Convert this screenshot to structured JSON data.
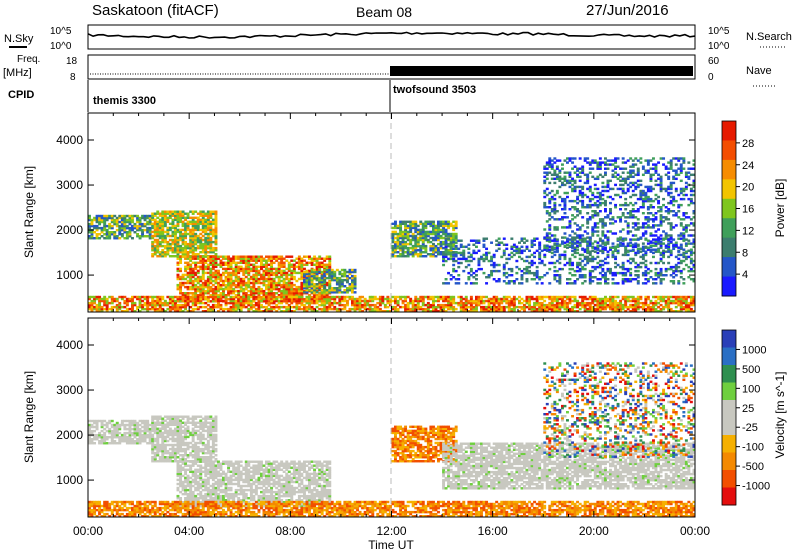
{
  "header": {
    "station": "Saskatoon (fitACF)",
    "beam": "Beam 08",
    "date": "27/Jun/2016"
  },
  "noise_panel": {
    "left_label": "N.Sky",
    "right_label": "N.Search",
    "left_ticks": [
      "10^5",
      "10^0"
    ],
    "right_ticks": [
      "10^5",
      "10^0"
    ]
  },
  "freq_panel": {
    "left_label_line1": "Freq.",
    "left_label_line2": "[MHz]",
    "left_ticks": [
      "18",
      "8"
    ],
    "right_label": "Nave",
    "right_ticks": [
      "60",
      "0"
    ]
  },
  "cpid_panel": {
    "label": "CPID",
    "modes": [
      {
        "name": "themis 3300",
        "start_hour": 0
      },
      {
        "name": "twofsound 3503",
        "start_hour": 12
      }
    ]
  },
  "x_axis": {
    "label": "Time UT",
    "tick_labels": [
      "00:00",
      "04:00",
      "08:00",
      "12:00",
      "16:00",
      "20:00",
      "00:00"
    ],
    "range_hours": [
      0,
      24
    ]
  },
  "colors": {
    "power": [
      "#1a1aff",
      "#2456c8",
      "#3c7d6e",
      "#3f9f5a",
      "#7fc61e",
      "#f2c400",
      "#f68c00",
      "#f34d00",
      "#e61a00"
    ],
    "velocity": [
      "#e40d0d",
      "#f24f00",
      "#f48900",
      "#f6b000",
      "#c8c8c0",
      "#c8c8c0",
      "#6fcf3f",
      "#2e8f4f",
      "#2a6fc4",
      "#2a3fb8"
    ],
    "fill_grey": "#c8c8c0"
  },
  "chart_data": [
    {
      "type": "heatmap",
      "title": "",
      "xlabel": "Time UT",
      "ylabel": "Slant Range [km]",
      "xlim": [
        0,
        24
      ],
      "ylim": [
        180,
        4600
      ],
      "y_tick_labels": [
        "1000",
        "2000",
        "3000",
        "4000"
      ],
      "colorbar": {
        "label": "Power [dB]",
        "tick_labels": [
          "4",
          "8",
          "12",
          "16",
          "20",
          "24",
          "28"
        ]
      },
      "regions": [
        {
          "t0": 0.0,
          "t1": 2.5,
          "r0": 1800,
          "r1": 2300,
          "level": "mid"
        },
        {
          "t0": 2.5,
          "t1": 5.0,
          "r0": 1400,
          "r1": 2400,
          "level": "high"
        },
        {
          "t0": 3.5,
          "t1": 9.5,
          "r0": 400,
          "r1": 1400,
          "level": "strong"
        },
        {
          "t0": 8.5,
          "t1": 10.5,
          "r0": 600,
          "r1": 1100,
          "level": "mid"
        },
        {
          "t0": 12.0,
          "t1": 14.5,
          "r0": 1400,
          "r1": 2200,
          "level": "mid"
        },
        {
          "t0": 14.0,
          "t1": 24.0,
          "r0": 800,
          "r1": 1800,
          "level": "weak"
        },
        {
          "t0": 0.0,
          "t1": 24.0,
          "r0": 180,
          "r1": 500,
          "level": "strong"
        },
        {
          "t0": 18.0,
          "t1": 24.0,
          "r0": 1500,
          "r1": 3600,
          "level": "weak"
        }
      ]
    },
    {
      "type": "heatmap",
      "title": "",
      "xlabel": "Time UT",
      "ylabel": "Slant Range [km]",
      "xlim": [
        0,
        24
      ],
      "ylim": [
        180,
        4600
      ],
      "y_tick_labels": [
        "1000",
        "2000",
        "3000",
        "4000"
      ],
      "colorbar": {
        "label": "Velocity [m s^-1]",
        "tick_labels": [
          "1000",
          "500",
          "100",
          "25",
          "-25",
          "-100",
          "-500",
          "-1000"
        ]
      },
      "regions": [
        {
          "t0": 0.0,
          "t1": 2.5,
          "r0": 1800,
          "r1": 2300,
          "level": "ground"
        },
        {
          "t0": 2.5,
          "t1": 5.0,
          "r0": 1400,
          "r1": 2400,
          "level": "ground"
        },
        {
          "t0": 3.5,
          "t1": 9.5,
          "r0": 400,
          "r1": 1400,
          "level": "ground"
        },
        {
          "t0": 12.0,
          "t1": 14.5,
          "r0": 1400,
          "r1": 2200,
          "level": "negative"
        },
        {
          "t0": 14.0,
          "t1": 24.0,
          "r0": 800,
          "r1": 1800,
          "level": "ground"
        },
        {
          "t0": 0.0,
          "t1": 24.0,
          "r0": 180,
          "r1": 500,
          "level": "negative"
        },
        {
          "t0": 18.0,
          "t1": 24.0,
          "r0": 1500,
          "r1": 3600,
          "level": "mixed"
        }
      ]
    }
  ]
}
